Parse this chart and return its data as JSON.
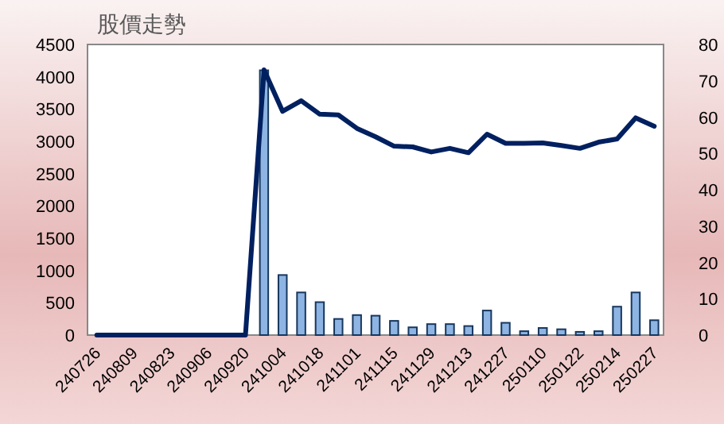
{
  "chart_data": {
    "type": "bar",
    "title": "股價走勢",
    "categories": [
      "240726",
      null,
      "240809",
      null,
      "240823",
      null,
      "240906",
      null,
      "240920",
      null,
      "241004",
      null,
      "241018",
      null,
      "241101",
      null,
      "241115",
      null,
      "241129",
      null,
      "241213",
      null,
      "241227",
      null,
      "250110",
      null,
      "250122",
      null,
      "250214",
      null,
      "250227"
    ],
    "series": [
      {
        "axis": "y",
        "color": "#8db4e2",
        "values": [
          0,
          0,
          0,
          0,
          0,
          0,
          0,
          0,
          0,
          4100,
          930,
          660,
          510,
          250,
          310,
          300,
          220,
          120,
          170,
          170,
          140,
          380,
          190,
          60,
          110,
          90,
          50,
          60,
          440,
          660,
          230
        ]
      },
      {
        "type": "line",
        "axis": "y2",
        "color": "#002060",
        "values": [
          0,
          0,
          0,
          0,
          0,
          0,
          0,
          0,
          0,
          73,
          61.6,
          64.5,
          60.8,
          60.6,
          56.9,
          54.6,
          52,
          51.8,
          50.4,
          51.4,
          50.2,
          55.3,
          52.8,
          52.8,
          52.9,
          52.2,
          51.4,
          53.1,
          54,
          59.8,
          57.5
        ]
      }
    ],
    "ylim": [
      0,
      4500
    ],
    "yticks": [
      0,
      500,
      1000,
      1500,
      2000,
      2500,
      3000,
      3500,
      4000,
      4500
    ],
    "y2lim": [
      0,
      80
    ],
    "y2ticks": [
      0,
      10,
      20,
      30,
      40,
      50,
      60,
      70,
      80
    ],
    "grid": false
  }
}
